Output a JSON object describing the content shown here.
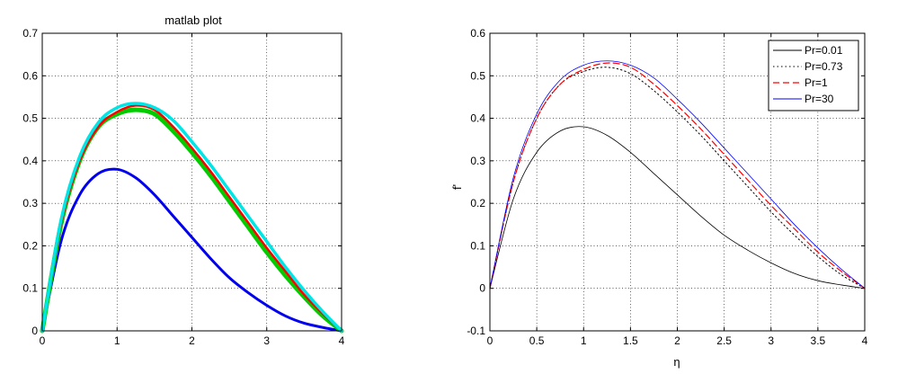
{
  "chart_data": [
    {
      "type": "line",
      "title": "matlab plot",
      "xlabel": "",
      "ylabel": "",
      "xlim": [
        0,
        4
      ],
      "ylim": [
        0,
        0.7
      ],
      "xticks": [
        0,
        1,
        2,
        3,
        4
      ],
      "yticks": [
        0,
        0.1,
        0.2,
        0.3,
        0.4,
        0.5,
        0.6,
        0.7
      ],
      "xtick_labels": [
        "0",
        "1",
        "2",
        "3",
        "4"
      ],
      "ytick_labels": [
        "0",
        "0.1",
        "0.2",
        "0.3",
        "0.4",
        "0.5",
        "0.6",
        "0.7"
      ],
      "grid": true,
      "legend": "none",
      "x": [
        0,
        0.25,
        0.5,
        0.75,
        1.0,
        1.25,
        1.5,
        1.75,
        2.0,
        2.25,
        2.5,
        2.75,
        3.0,
        3.25,
        3.5,
        3.75,
        4.0
      ],
      "series": [
        {
          "color": "#0000ee",
          "dash": "",
          "width": 3,
          "values": [
            0,
            0.21,
            0.32,
            0.37,
            0.38,
            0.36,
            0.32,
            0.27,
            0.22,
            0.17,
            0.125,
            0.09,
            0.06,
            0.035,
            0.018,
            0.008,
            0
          ]
        },
        {
          "color": "#00cc00",
          "dash": "",
          "width": 5,
          "values": [
            0,
            0.25,
            0.4,
            0.48,
            0.51,
            0.52,
            0.51,
            0.47,
            0.42,
            0.365,
            0.305,
            0.245,
            0.185,
            0.13,
            0.08,
            0.035,
            0
          ]
        },
        {
          "color": "#ff0000",
          "dash": "",
          "width": 2.5,
          "values": [
            0,
            0.25,
            0.4,
            0.48,
            0.515,
            0.53,
            0.52,
            0.48,
            0.43,
            0.375,
            0.315,
            0.255,
            0.195,
            0.14,
            0.085,
            0.04,
            0
          ]
        },
        {
          "color": "#00e5e5",
          "dash": "",
          "width": 3.5,
          "values": [
            0,
            0.26,
            0.41,
            0.49,
            0.525,
            0.535,
            0.525,
            0.495,
            0.445,
            0.39,
            0.33,
            0.27,
            0.21,
            0.15,
            0.095,
            0.045,
            0
          ]
        }
      ]
    },
    {
      "type": "line",
      "title": "",
      "xlabel": "η",
      "ylabel": "f'",
      "xlim": [
        0,
        4
      ],
      "ylim": [
        -0.1,
        0.6
      ],
      "xticks": [
        0,
        0.5,
        1,
        1.5,
        2,
        2.5,
        3,
        3.5,
        4
      ],
      "yticks": [
        -0.1,
        0,
        0.1,
        0.2,
        0.3,
        0.4,
        0.5,
        0.6
      ],
      "xtick_labels": [
        "0",
        "0.5",
        "1",
        "1.5",
        "2",
        "2.5",
        "3",
        "3.5",
        "4"
      ],
      "ytick_labels": [
        "-0.1",
        "0",
        "0.1",
        "0.2",
        "0.3",
        "0.4",
        "0.5",
        "0.6"
      ],
      "grid": true,
      "legend": "top-right",
      "x": [
        0,
        0.25,
        0.5,
        0.75,
        1.0,
        1.25,
        1.5,
        1.75,
        2.0,
        2.25,
        2.5,
        2.75,
        3.0,
        3.25,
        3.5,
        3.75,
        4.0
      ],
      "series": [
        {
          "name": "Pr=0.01",
          "color": "#000000",
          "dash": "",
          "width": 0.8,
          "values": [
            0,
            0.21,
            0.32,
            0.37,
            0.38,
            0.36,
            0.32,
            0.27,
            0.22,
            0.17,
            0.125,
            0.09,
            0.06,
            0.035,
            0.018,
            0.008,
            0
          ]
        },
        {
          "name": "Pr=0.73",
          "color": "#000000",
          "dash": "1.5,3",
          "width": 1,
          "values": [
            0,
            0.25,
            0.4,
            0.48,
            0.51,
            0.52,
            0.505,
            0.465,
            0.415,
            0.36,
            0.3,
            0.24,
            0.18,
            0.125,
            0.075,
            0.032,
            0
          ]
        },
        {
          "name": "Pr=1",
          "color": "#ff0000",
          "dash": "7,4",
          "width": 1.2,
          "values": [
            0,
            0.25,
            0.4,
            0.48,
            0.515,
            0.53,
            0.52,
            0.48,
            0.43,
            0.375,
            0.315,
            0.255,
            0.195,
            0.14,
            0.085,
            0.04,
            0
          ]
        },
        {
          "name": "Pr=30",
          "color": "#0000ff",
          "dash": "",
          "width": 0.8,
          "values": [
            0,
            0.26,
            0.41,
            0.49,
            0.525,
            0.535,
            0.525,
            0.495,
            0.445,
            0.39,
            0.33,
            0.27,
            0.21,
            0.15,
            0.095,
            0.045,
            0
          ]
        }
      ]
    }
  ]
}
